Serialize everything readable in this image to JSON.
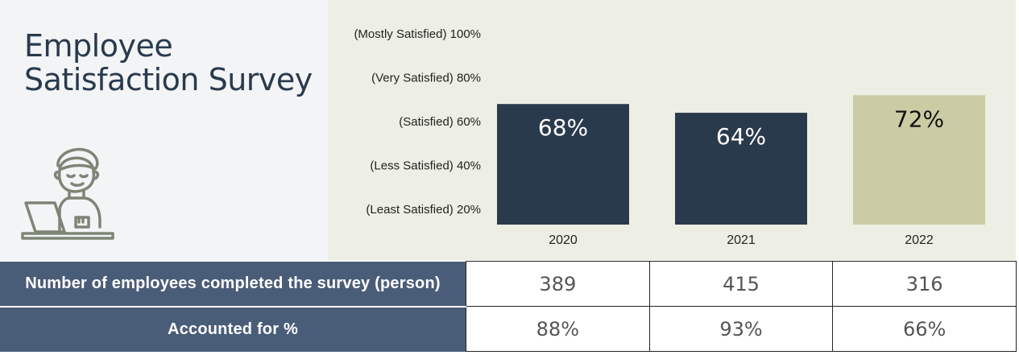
{
  "header": {
    "title": "Employee Satisfaction Survey"
  },
  "icons": {
    "avatar": "person-at-laptop-icon"
  },
  "colors": {
    "left_panel_bg": "#f2f4f6",
    "chart_bg": "#edefe4",
    "bar_dark": "#2a3a4d",
    "bar_light": "#cbcca4",
    "table_header_bg": "#4a5d78"
  },
  "chart_data": {
    "type": "bar",
    "title": "",
    "xlabel": "",
    "ylabel": "",
    "categories": [
      "2020",
      "2021",
      "2022"
    ],
    "values": [
      68,
      64,
      72
    ],
    "data_labels": [
      "68%",
      "64%",
      "72%"
    ],
    "bar_colors": [
      "#2a3a4d",
      "#2a3a4d",
      "#cbcca4"
    ],
    "label_colors": [
      "#ffffff",
      "#ffffff",
      "#111111"
    ],
    "yticks": [
      {
        "value": 100,
        "label": "(Mostly Satisfied) 100%"
      },
      {
        "value": 80,
        "label": "(Very Satisfied) 80%"
      },
      {
        "value": 60,
        "label": "(Satisfied) 60%"
      },
      {
        "value": 40,
        "label": "(Less Satisfied) 40%"
      },
      {
        "value": 20,
        "label": "(Least Satisfied) 20%"
      }
    ],
    "ylim": [
      15,
      105
    ],
    "grid": false,
    "legend": "none"
  },
  "table": {
    "rows": [
      {
        "label": "Number of employees completed the survey (person)",
        "cells": [
          "389",
          "415",
          "316"
        ]
      },
      {
        "label": "Accounted for %",
        "cells": [
          "88%",
          "93%",
          "66%"
        ]
      }
    ]
  }
}
